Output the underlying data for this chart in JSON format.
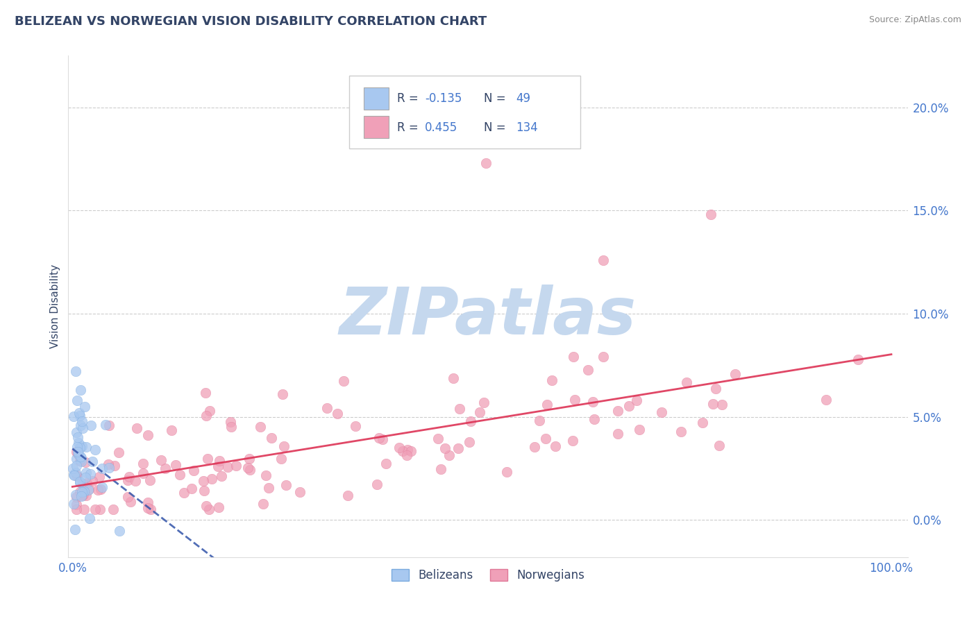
{
  "title": "BELIZEAN VS NORWEGIAN VISION DISABILITY CORRELATION CHART",
  "source": "Source: ZipAtlas.com",
  "ylabel": "Vision Disability",
  "blue_color": "#a8c8f0",
  "pink_color": "#f0a0b8",
  "blue_edge_color": "#7aaade",
  "pink_edge_color": "#e07898",
  "blue_line_color": "#3355aa",
  "pink_line_color": "#dd3355",
  "title_color": "#334466",
  "source_color": "#888888",
  "axis_tick_color": "#4477cc",
  "ylabel_color": "#334466",
  "legend_text_color": "#334466",
  "legend_r_color": "#4477cc",
  "background_color": "#ffffff",
  "grid_color": "#cccccc",
  "watermark_color": "#c5d8ee",
  "watermark_text": "ZIPatlas",
  "xlim": [
    -0.005,
    1.02
  ],
  "ylim": [
    -0.018,
    0.225
  ],
  "yticks": [
    0.0,
    0.05,
    0.1,
    0.15,
    0.2
  ],
  "ytick_labels": [
    "0.0%",
    "5.0%",
    "10.0%",
    "15.0%",
    "20.0%"
  ],
  "xtick_labels": [
    "0.0%",
    "100.0%"
  ]
}
